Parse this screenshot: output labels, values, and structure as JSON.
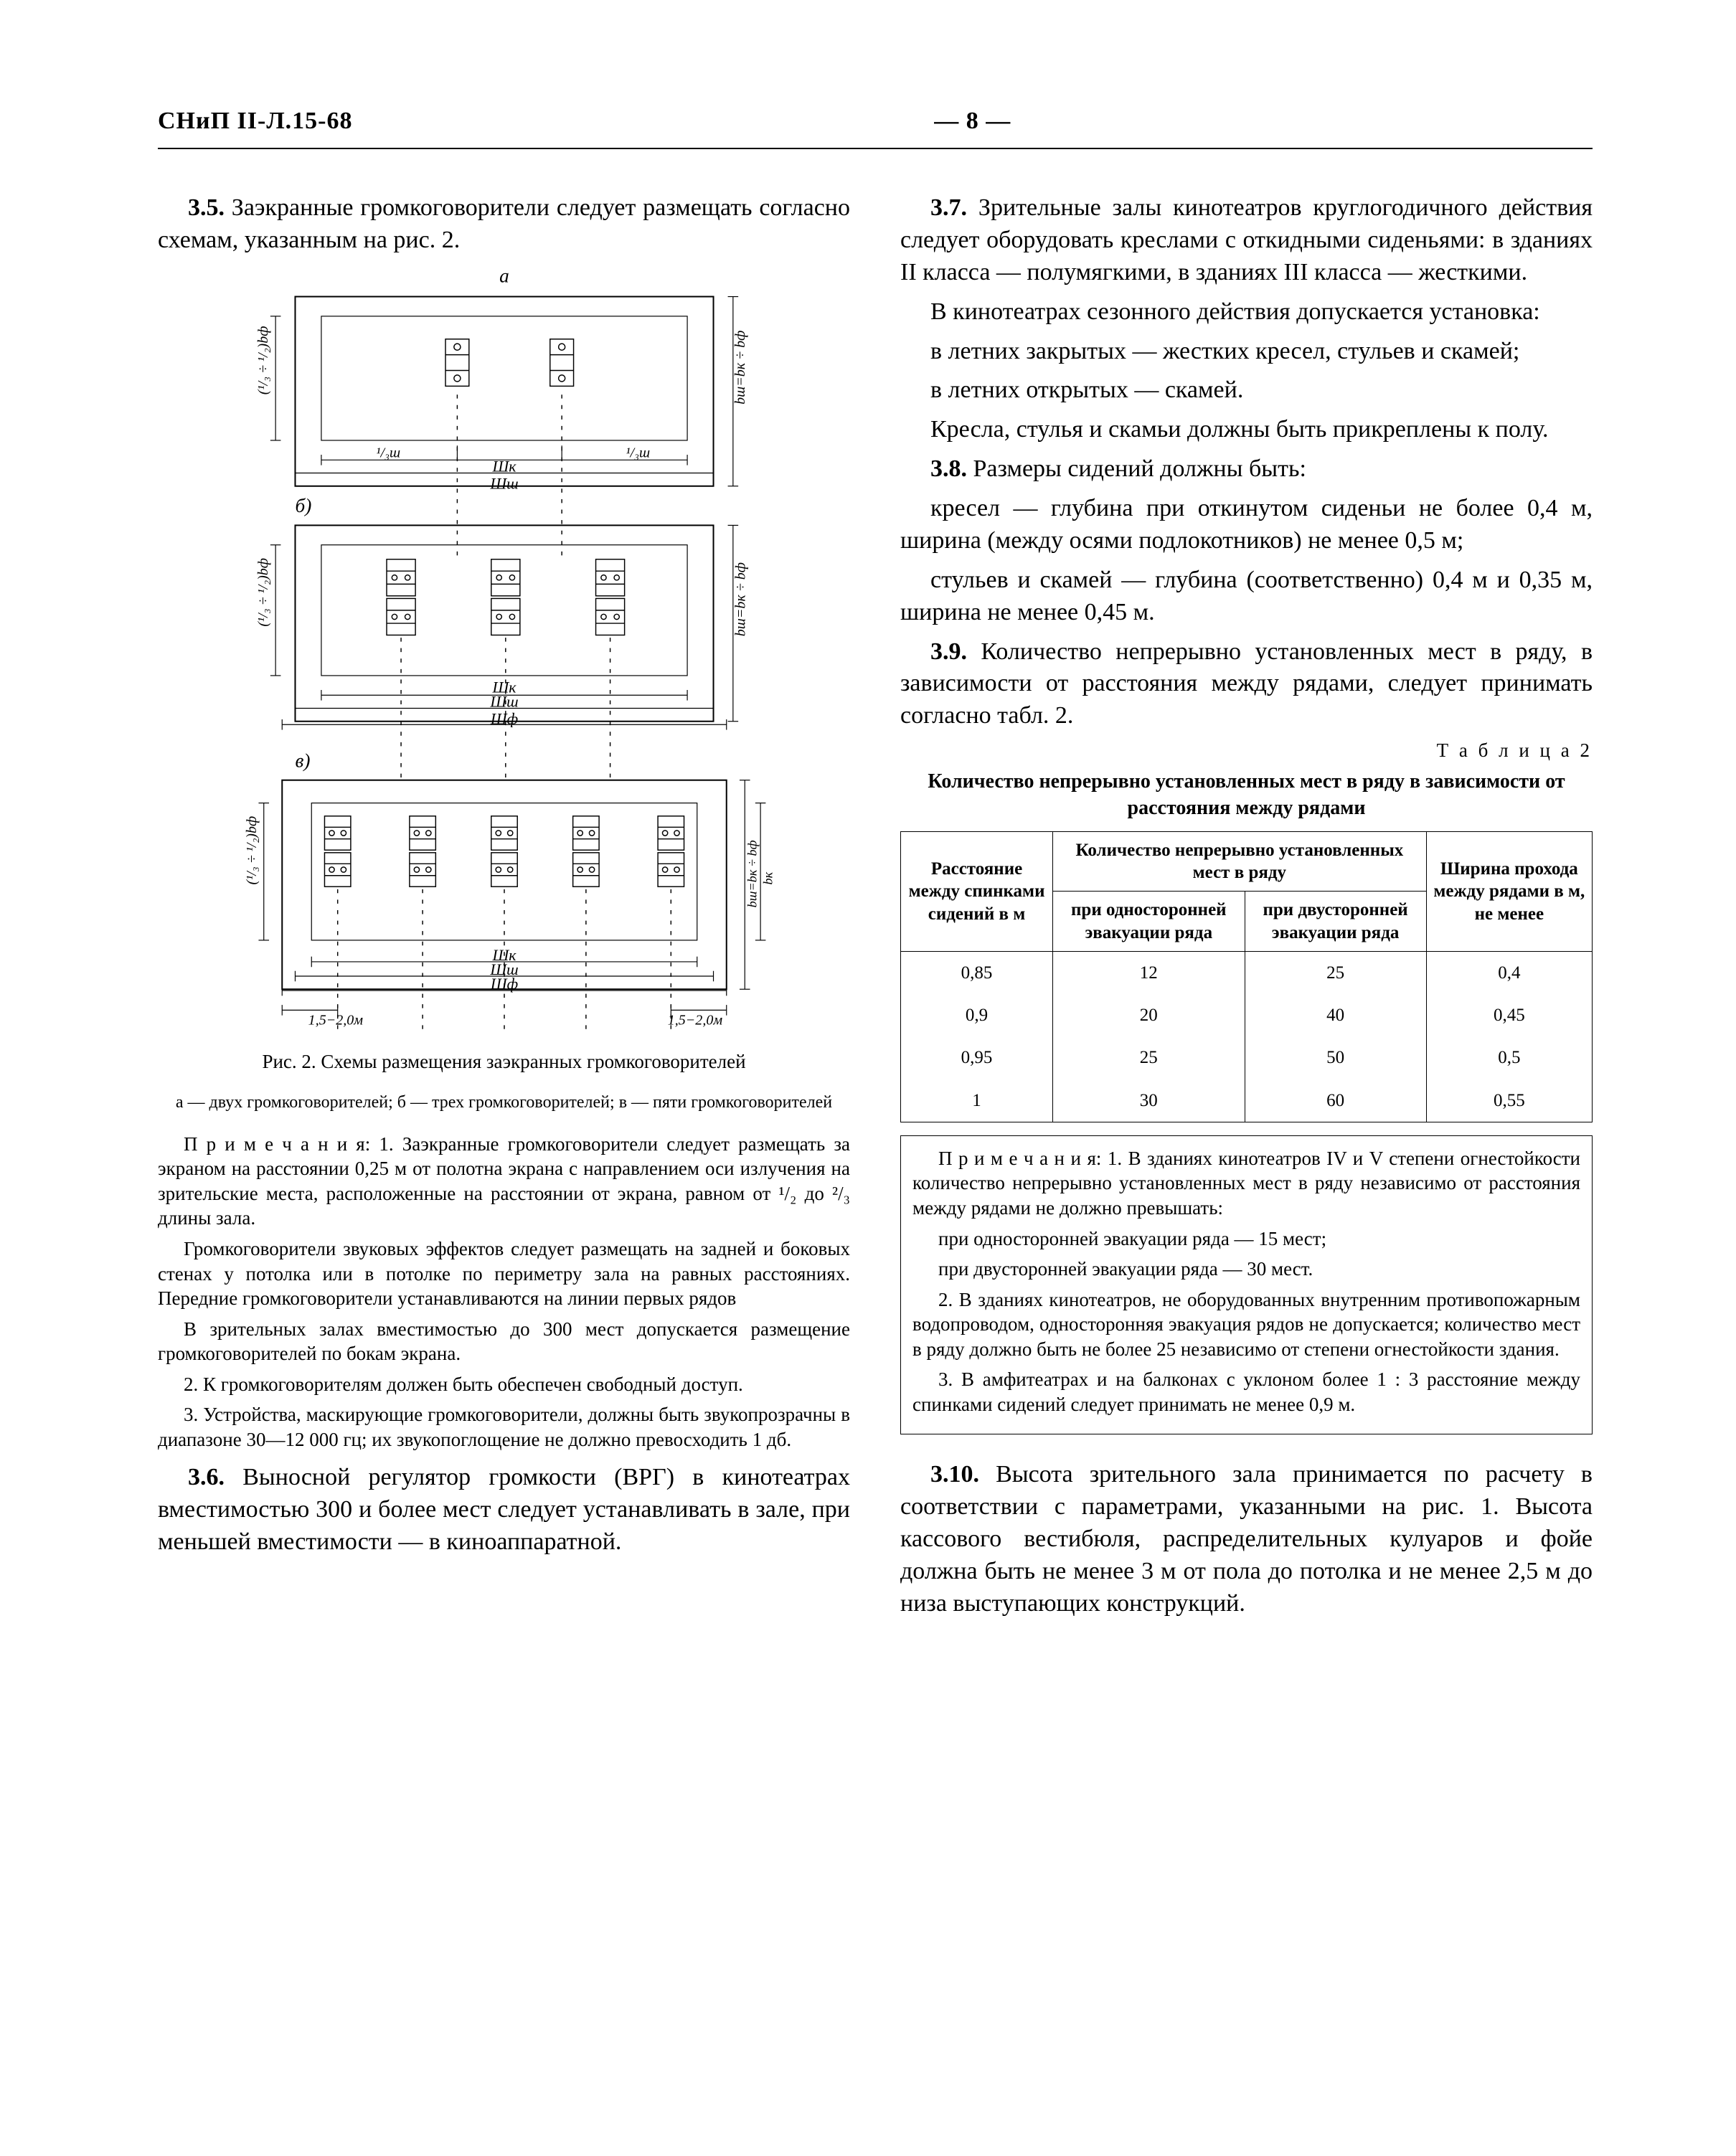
{
  "header": {
    "left": "СНиП II-Л.15-68",
    "page": "— 8 —"
  },
  "left_col": {
    "p35": {
      "sec": "3.5.",
      "text": "Заэкранные громкоговорители следует размещать согласно схемам, указанным на рис. 2."
    },
    "fig_caption": "Рис. 2. Схемы размещения заэкранных громкоговорителей",
    "fig_sub": "а — двух громкоговорителей; б — трех громкоговорителей; в — пяти громкоговорителей",
    "notes": {
      "lead": "П р и м е ч а н и я: 1. Заэкранные громкоговорители следует размещать за экраном на расстоянии 0,25 м от полотна экрана с направлением оси излучения на зрительские места, расположенные на расстоянии от экрана, равном от ¹/₂ до ²/₃ длины зала.",
      "p2": "Громкоговорители звуковых эффектов следует размещать на задней и боковых стенах у потолка или в потолке по периметру зала на равных расстояниях. Передние громкоговорители устанавливаются на линии первых рядов",
      "p3": "В зрительных залах вместимостью до 300 мест допускается размещение громкоговорителей по бокам экрана.",
      "p4": "2. К громкоговорителям должен быть обеспечен свободный доступ.",
      "p5": "3. Устройства, маскирующие громкоговорители, должны быть звукопрозрачны в диапазоне 30—12 000 гц; их звукопоглощение не должно превосходить 1 дб."
    },
    "p36": {
      "sec": "3.6.",
      "text": "Выносной регулятор громкости (ВРГ) в кинотеатрах вместимостью 300 и более мест следует устанавливать в зале, при меньшей вместимости — в киноаппаратной."
    }
  },
  "right_col": {
    "p37": {
      "sec": "3.7.",
      "text": "Зрительные залы кинотеатров круглогодичного действия следует оборудовать креслами с откидными сиденьями: в зданиях II класса — полумягкими, в зданиях III класса — жесткими."
    },
    "p37b": "В кинотеатрах сезонного действия допускается установка:",
    "p37c": "в летних закрытых — жестких кресел, стульев и скамей;",
    "p37d": "в летних открытых — скамей.",
    "p37e": "Кресла, стулья и скамьи должны быть прикреплены к полу.",
    "p38": {
      "sec": "3.8.",
      "text": "Размеры сидений должны быть:"
    },
    "p38a": "кресел — глубина при откинутом сиденьи не более 0,4 м, ширина (между осями подлокотников) не менее 0,5 м;",
    "p38b": "стульев и скамей — глубина (соответственно) 0,4 м и 0,35 м, ширина не менее 0,45 м.",
    "p39": {
      "sec": "3.9.",
      "text": "Количество непрерывно установленных мест в ряду, в зависимости от расстояния между рядами, следует принимать согласно табл. 2."
    },
    "table2": {
      "label": "Т а б л и ц а   2",
      "title": "Количество непрерывно установленных мест в ряду в зависимости от расстояния между рядами",
      "head": {
        "c1": "Расстояние между спинками сидений в м",
        "c2span": "Количество непрерывно установленных мест в ряду",
        "c2a": "при односторонней эвакуации ряда",
        "c2b": "при двусторонней эвакуации ряда",
        "c3": "Ширина прохода между рядами в м, не менее"
      },
      "rows": [
        {
          "d": "0,85",
          "a": "12",
          "b": "25",
          "w": "0,4"
        },
        {
          "d": "0,9",
          "a": "20",
          "b": "40",
          "w": "0,45"
        },
        {
          "d": "0,95",
          "a": "25",
          "b": "50",
          "w": "0,5"
        },
        {
          "d": "1",
          "a": "30",
          "b": "60",
          "w": "0,55"
        }
      ],
      "notes": {
        "n1a": "П р и м е ч а н и я: 1. В зданиях кинотеатров IV и V степени огнестойкости количество непрерывно установленных мест в ряду независимо от расстояния между рядами не должно превышать:",
        "n1b": "при односторонней эвакуации ряда — 15 мест;",
        "n1c": "при двусторонней эвакуации ряда — 30 мест.",
        "n2": "2. В зданиях кинотеатров, не оборудованных внутренним противопожарным водопроводом, односторонняя эвакуация рядов не допускается; количество мест в ряду должно быть не более 25 независимо от степени огнестойкости здания.",
        "n3": "3. В амфитеатрах и на балконах с уклоном более 1 : 3 расстояние между спинками сидений следует принимать не менее 0,9 м."
      }
    },
    "p310": {
      "sec": "3.10.",
      "text": "Высота зрительного зала принимается по расчету в соответствии с параметрами, указанными на рис. 1. Высота кассового вестибюля, распределительных кулуаров и фойе должна быть не менее 3 м от пола до потолка и не менее 2,5 м до низа выступающих конструкций."
    }
  },
  "figure": {
    "stroke": "#000000",
    "thin": 1.3,
    "thick": 2.2,
    "labels": {
      "a": "а",
      "b": "б",
      "v": "в",
      "Wk": "Шк",
      "Ww": "Шш",
      "Wf": "Шф",
      "h15": "1,5−2,0м",
      "side_left": "(¹/₃ ÷ ¹/₂)bф",
      "side_right": "bш=bк ÷ bф"
    }
  }
}
